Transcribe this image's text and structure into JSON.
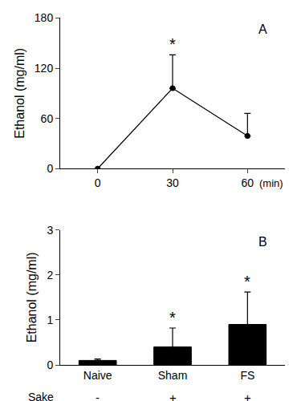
{
  "chart_data": [
    {
      "type": "line",
      "panel": "A",
      "x": [
        0,
        30,
        60
      ],
      "values": [
        0,
        96,
        39
      ],
      "errors": [
        0,
        40,
        27
      ],
      "xlabel": "(min)",
      "ylabel": "Ethanol (mg/ml)",
      "xlim": [
        -15,
        75
      ],
      "xticks": [
        0,
        30,
        60
      ],
      "ylim": [
        0,
        180
      ],
      "yticks": [
        0,
        60,
        120,
        180
      ],
      "color": "#000000",
      "marker": "circle",
      "annotations": [
        {
          "x": 30,
          "text": "*"
        }
      ]
    },
    {
      "type": "bar",
      "panel": "B",
      "categories": [
        "Naive",
        "Sham",
        "FS"
      ],
      "values": [
        0.1,
        0.4,
        0.9
      ],
      "errors": [
        0.03,
        0.42,
        0.72
      ],
      "ylabel": "Ethanol (mg/ml)",
      "ylim": [
        0,
        3
      ],
      "yticks": [
        0,
        1,
        2,
        3
      ],
      "color": "#000000",
      "annotations": [
        {
          "category": "Sham",
          "text": "*"
        },
        {
          "category": "FS",
          "text": "*"
        }
      ],
      "sake_row": {
        "label": "Sake",
        "values": [
          "-",
          "+",
          "+"
        ]
      }
    }
  ]
}
